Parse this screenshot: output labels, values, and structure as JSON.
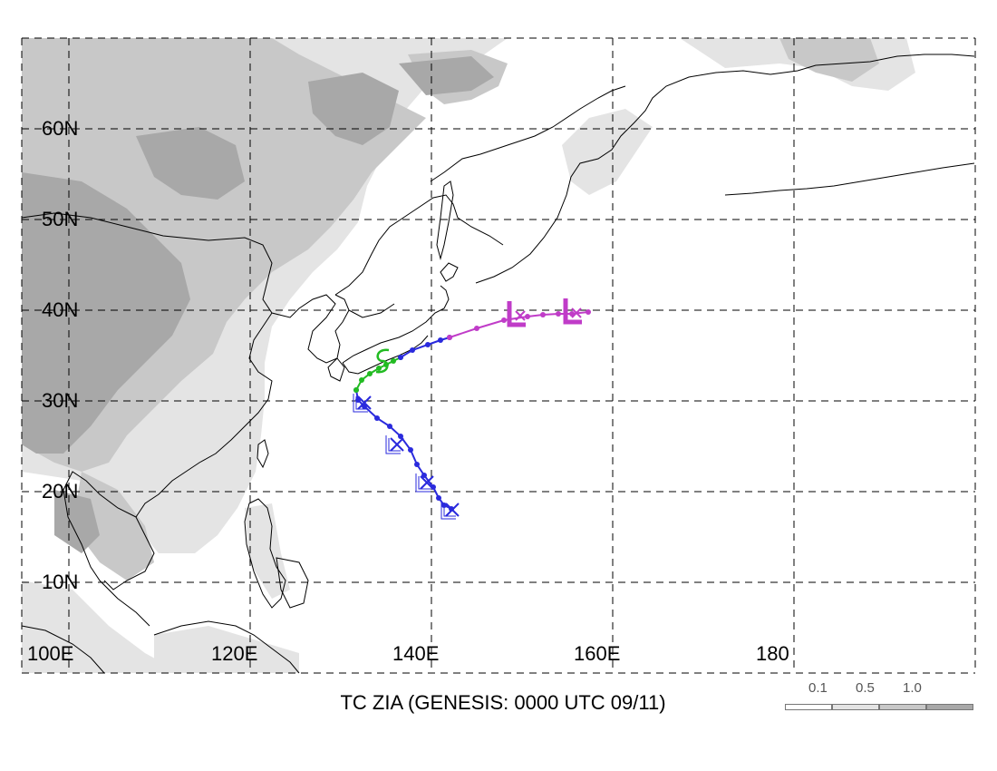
{
  "map": {
    "lat_labels": [
      "60N",
      "50N",
      "40N",
      "30N",
      "20N",
      "10N"
    ],
    "lon_labels": [
      "100E",
      "120E",
      "140E",
      "160E",
      "180"
    ],
    "title": "TC ZIA (GENESIS: 0000 UTC 09/11)",
    "colors": {
      "land_outline": "#000000",
      "grid": "#000000",
      "shade_light": "#e4e4e4",
      "shade_mid": "#c8c8c8",
      "shade_dark": "#a8a8a8",
      "track_blue": "#2a2add",
      "track_green": "#22bb22",
      "track_magenta": "#c03cc8"
    },
    "legend": {
      "ticks": [
        "0.1",
        "0.5",
        "1.0"
      ],
      "colors": [
        "#ffffff",
        "#e4e4e4",
        "#c8c8c8",
        "#a8a8a8"
      ]
    },
    "track": {
      "blue_points_lonlat": [
        [
          142.2,
          18.1
        ],
        [
          141.4,
          18.5
        ],
        [
          140.8,
          19.3
        ],
        [
          140.2,
          20.5
        ],
        [
          139.2,
          21.8
        ],
        [
          138.4,
          23.0
        ],
        [
          137.7,
          24.6
        ],
        [
          136.6,
          26.1
        ],
        [
          135.4,
          27.2
        ],
        [
          134.0,
          28.1
        ],
        [
          132.6,
          29.4
        ],
        [
          131.9,
          30.1
        ],
        [
          131.7,
          31.2
        ]
      ],
      "green_points_lonlat": [
        [
          131.7,
          31.2
        ],
        [
          132.3,
          32.3
        ],
        [
          133.2,
          33.0
        ],
        [
          134.2,
          33.6
        ],
        [
          135.0,
          34.0
        ],
        [
          135.8,
          34.4
        ],
        [
          136.6,
          34.8
        ]
      ],
      "blue2_points_lonlat": [
        [
          136.6,
          34.8
        ],
        [
          137.9,
          35.6
        ],
        [
          139.6,
          36.2
        ],
        [
          141.0,
          36.7
        ],
        [
          142.0,
          37.0
        ]
      ],
      "magenta_points_lonlat": [
        [
          142.0,
          37.0
        ],
        [
          145.0,
          38.0
        ],
        [
          148.0,
          38.9
        ],
        [
          150.6,
          39.3
        ],
        [
          152.3,
          39.5
        ],
        [
          154.0,
          39.6
        ],
        [
          155.5,
          39.6
        ],
        [
          157.3,
          39.8
        ]
      ],
      "tc_markers_lonlat": [
        [
          142.3,
          18.0
        ],
        [
          139.5,
          21.0
        ],
        [
          136.2,
          25.2
        ],
        [
          132.6,
          29.8
        ]
      ],
      "ex_markers_lonlat": [
        [
          149.8,
          39.4
        ],
        [
          156.0,
          39.7
        ]
      ],
      "storm_symbol_lonlat": [
        134.6,
        34.4
      ]
    }
  }
}
